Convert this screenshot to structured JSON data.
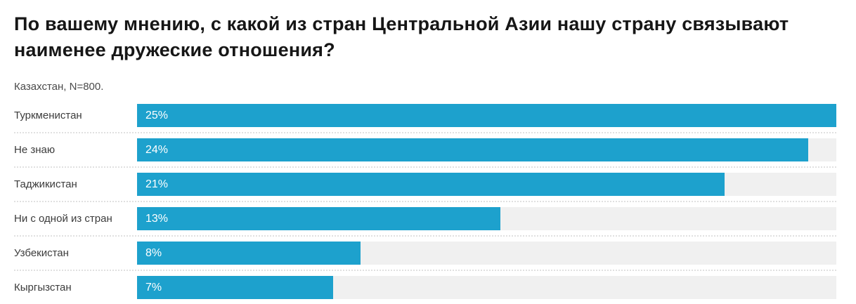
{
  "header": {
    "title": "По вашему мнению, с какой из стран Центральной Азии нашу страну связывают наименее дружеские отношения?",
    "subtitle": "Казахстан, N=800."
  },
  "colors": {
    "bar": "#1da1cd",
    "track": "#f0f0f0",
    "separator": "#e0e0e0",
    "title_text": "#161616",
    "label_text": "#3c3c3c",
    "value_text": "#ffffff"
  },
  "chart_data": {
    "type": "bar",
    "orientation": "horizontal",
    "title": "По вашему мнению, с какой из стран Центральной Азии нашу страну связывают наименее дружеские отношения?",
    "subtitle": "Казахстан, N=800.",
    "categories": [
      "Туркменистан",
      "Не знаю",
      "Таджикистан",
      "Ни с одной из стран",
      "Узбекистан",
      "Кыргызстан"
    ],
    "values": [
      25,
      24,
      21,
      13,
      8,
      7
    ],
    "value_labels": [
      "25%",
      "24%",
      "21%",
      "13%",
      "8%",
      "7%"
    ],
    "unit": "%",
    "xlim": [
      0,
      25
    ],
    "bars_scaled_to_max": true,
    "grid": false,
    "legend": "none",
    "value_label_position": "inside-left"
  }
}
